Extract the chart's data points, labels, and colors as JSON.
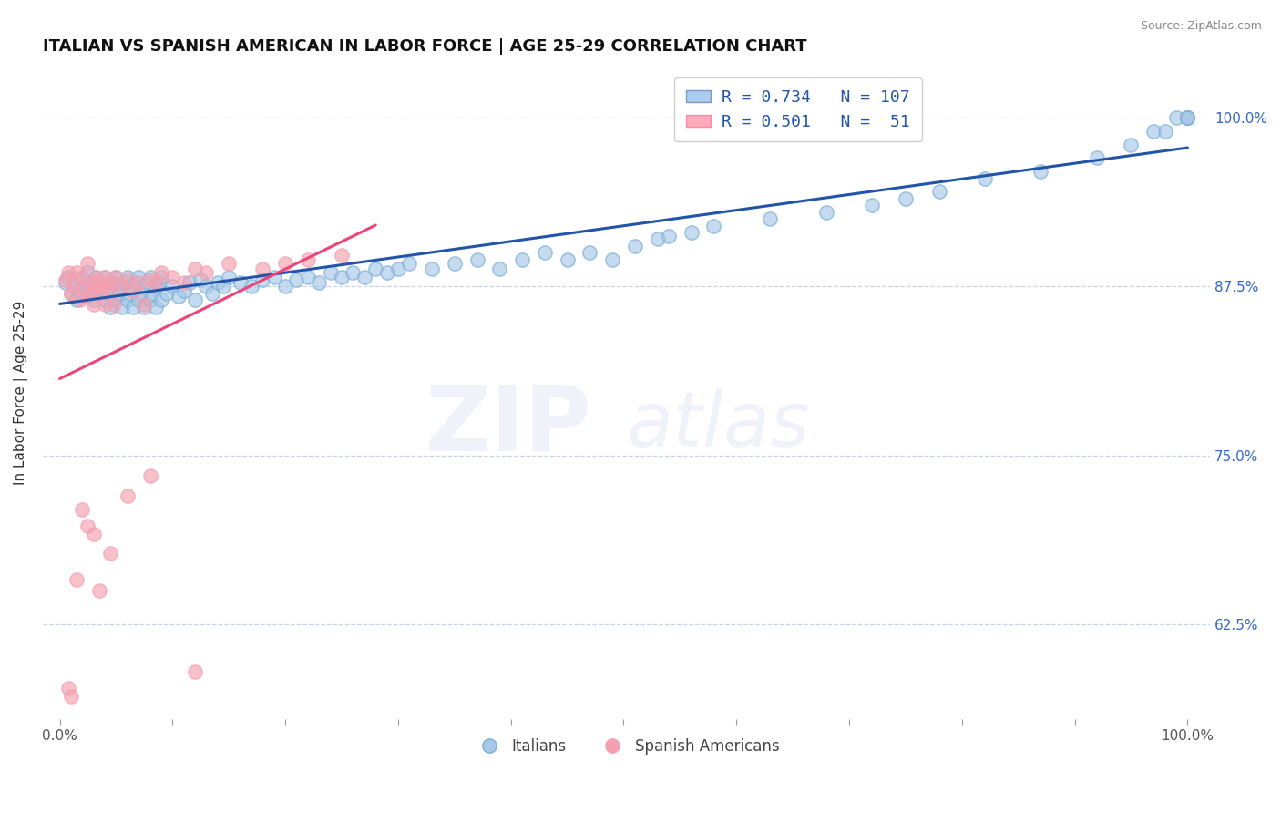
{
  "title": "ITALIAN VS SPANISH AMERICAN IN LABOR FORCE | AGE 25-29 CORRELATION CHART",
  "source": "Source: ZipAtlas.com",
  "ylabel": "In Labor Force | Age 25-29",
  "ytick_values": [
    0.625,
    0.75,
    0.875,
    1.0
  ],
  "yticklabels": [
    "62.5%",
    "75.0%",
    "87.5%",
    "100.0%"
  ],
  "legend_R_italian": "R = 0.734",
  "legend_N_italian": "N = 107",
  "legend_R_spanish": "R = 0.501",
  "legend_N_spanish": "N =  51",
  "italian_color": "#7BAFD4",
  "italian_face_color": "#A8C8E8",
  "spanish_color": "#F4A0B0",
  "spanish_face_color": "#F4A0B0",
  "italian_line_color": "#2255AA",
  "spanish_line_color": "#EE4477",
  "watermark_zip": "ZIP",
  "watermark_atlas": "atlas",
  "title_fontsize": 13,
  "source_fontsize": 9,
  "italian_scatter_x": [
    0.005,
    0.008,
    0.01,
    0.012,
    0.015,
    0.018,
    0.02,
    0.022,
    0.025,
    0.025,
    0.028,
    0.03,
    0.03,
    0.032,
    0.035,
    0.035,
    0.038,
    0.04,
    0.04,
    0.042,
    0.045,
    0.045,
    0.048,
    0.05,
    0.05,
    0.052,
    0.055,
    0.055,
    0.058,
    0.06,
    0.06,
    0.062,
    0.065,
    0.065,
    0.068,
    0.07,
    0.07,
    0.072,
    0.075,
    0.075,
    0.078,
    0.08,
    0.08,
    0.082,
    0.085,
    0.085,
    0.088,
    0.09,
    0.09,
    0.095,
    0.1,
    0.105,
    0.11,
    0.115,
    0.12,
    0.125,
    0.13,
    0.135,
    0.14,
    0.145,
    0.15,
    0.16,
    0.17,
    0.18,
    0.19,
    0.2,
    0.21,
    0.22,
    0.23,
    0.24,
    0.25,
    0.26,
    0.27,
    0.28,
    0.29,
    0.3,
    0.31,
    0.33,
    0.35,
    0.37,
    0.39,
    0.41,
    0.43,
    0.45,
    0.47,
    0.49,
    0.51,
    0.53,
    0.54,
    0.56,
    0.58,
    0.63,
    0.68,
    0.72,
    0.75,
    0.78,
    0.82,
    0.87,
    0.92,
    0.95,
    0.97,
    0.98,
    0.99,
    1.0,
    1.0,
    1.0,
    1.0
  ],
  "italian_scatter_y": [
    0.878,
    0.882,
    0.87,
    0.875,
    0.865,
    0.872,
    0.88,
    0.875,
    0.868,
    0.885,
    0.872,
    0.878,
    0.865,
    0.882,
    0.87,
    0.875,
    0.878,
    0.865,
    0.882,
    0.87,
    0.875,
    0.86,
    0.878,
    0.865,
    0.882,
    0.87,
    0.875,
    0.86,
    0.878,
    0.865,
    0.882,
    0.87,
    0.875,
    0.86,
    0.878,
    0.865,
    0.882,
    0.87,
    0.875,
    0.86,
    0.878,
    0.865,
    0.882,
    0.87,
    0.875,
    0.86,
    0.878,
    0.865,
    0.882,
    0.87,
    0.875,
    0.868,
    0.872,
    0.878,
    0.865,
    0.88,
    0.875,
    0.87,
    0.878,
    0.875,
    0.882,
    0.878,
    0.875,
    0.88,
    0.882,
    0.875,
    0.88,
    0.882,
    0.878,
    0.885,
    0.882,
    0.885,
    0.882,
    0.888,
    0.885,
    0.888,
    0.892,
    0.888,
    0.892,
    0.895,
    0.888,
    0.895,
    0.9,
    0.895,
    0.9,
    0.895,
    0.905,
    0.91,
    0.912,
    0.915,
    0.92,
    0.925,
    0.93,
    0.935,
    0.94,
    0.945,
    0.955,
    0.96,
    0.97,
    0.98,
    0.99,
    0.99,
    1.0,
    1.0,
    1.0,
    1.0,
    1.0
  ],
  "spanish_scatter_x": [
    0.005,
    0.008,
    0.01,
    0.012,
    0.015,
    0.018,
    0.02,
    0.022,
    0.025,
    0.025,
    0.028,
    0.03,
    0.03,
    0.032,
    0.035,
    0.035,
    0.038,
    0.04,
    0.04,
    0.042,
    0.045,
    0.048,
    0.05,
    0.055,
    0.06,
    0.065,
    0.07,
    0.075,
    0.08,
    0.085,
    0.09,
    0.1,
    0.11,
    0.12,
    0.13,
    0.15,
    0.18,
    0.2,
    0.22,
    0.25,
    0.03,
    0.008,
    0.015,
    0.025,
    0.02,
    0.06,
    0.08,
    0.035,
    0.045,
    0.12,
    0.01
  ],
  "spanish_scatter_y": [
    0.88,
    0.885,
    0.87,
    0.875,
    0.885,
    0.865,
    0.882,
    0.875,
    0.868,
    0.892,
    0.872,
    0.878,
    0.862,
    0.882,
    0.87,
    0.878,
    0.875,
    0.862,
    0.882,
    0.872,
    0.878,
    0.862,
    0.882,
    0.875,
    0.88,
    0.872,
    0.878,
    0.862,
    0.88,
    0.878,
    0.885,
    0.882,
    0.878,
    0.888,
    0.885,
    0.892,
    0.888,
    0.892,
    0.895,
    0.898,
    0.692,
    0.578,
    0.658,
    0.698,
    0.71,
    0.72,
    0.735,
    0.65,
    0.678,
    0.59,
    0.572
  ]
}
